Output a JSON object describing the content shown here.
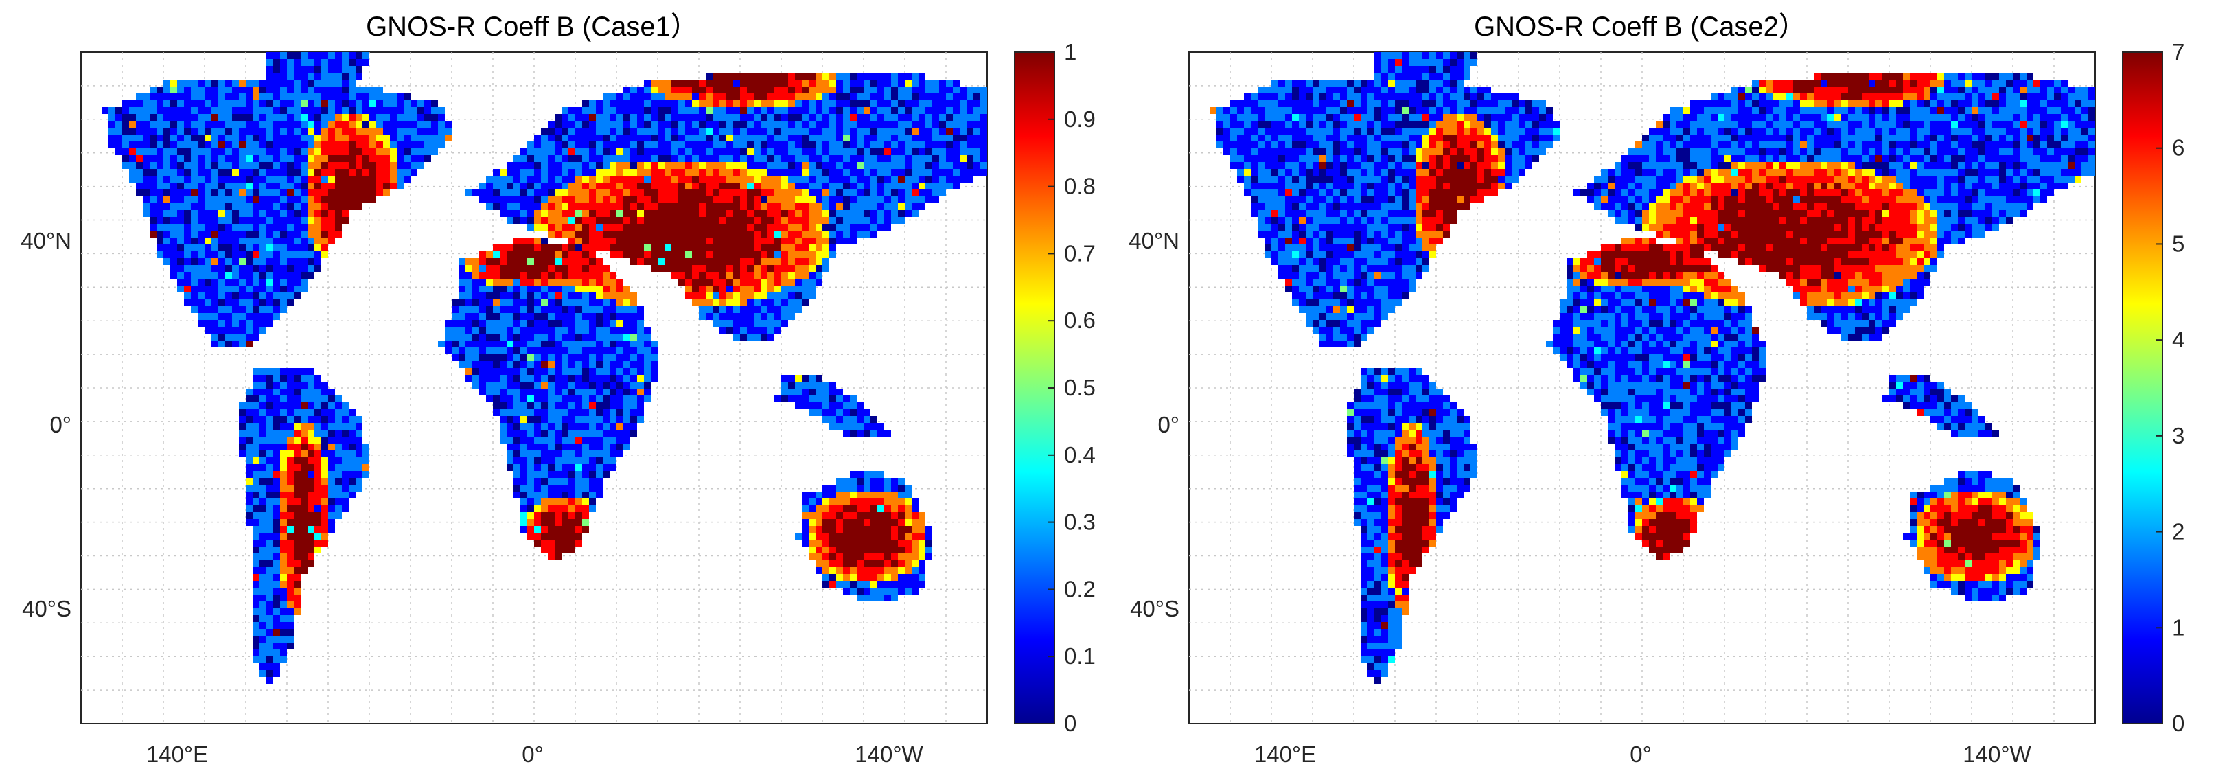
{
  "colors": {
    "ocean": "#ffffff",
    "gridline": "#c8c8c8",
    "axis": "#262626",
    "land_palette": [
      "#00008f",
      "#0000ff",
      "#0080ff",
      "#00ffff",
      "#80ff80",
      "#ffff00",
      "#ff8000",
      "#ff0000",
      "#800000"
    ]
  },
  "chart_data": [
    {
      "type": "heatmap",
      "subtype": "map",
      "title": "GNOS-R  Coeff B (Case1）",
      "map_x_ticks": [
        "140°E",
        "0°",
        "140°W"
      ],
      "map_y_ticks": [
        "40°N",
        "0°",
        "40°S"
      ],
      "colorbar": {
        "colormap": "jet",
        "range": [
          0,
          1
        ],
        "ticks": [
          "0",
          "0.1",
          "0.2",
          "0.3",
          "0.4",
          "0.5",
          "0.6",
          "0.7",
          "0.8",
          "0.9",
          "1"
        ]
      },
      "grid": true
    },
    {
      "type": "heatmap",
      "subtype": "map",
      "title": "GNOS-R  Coeff B (Case2）",
      "map_x_ticks": [
        "140°E",
        "0°",
        "140°W"
      ],
      "map_y_ticks": [
        "40°N",
        "0°",
        "40°S"
      ],
      "colorbar": {
        "colormap": "jet",
        "range": [
          0,
          7
        ],
        "ticks": [
          "0",
          "1",
          "2",
          "3",
          "4",
          "5",
          "6",
          "7"
        ]
      },
      "grid": true
    }
  ]
}
